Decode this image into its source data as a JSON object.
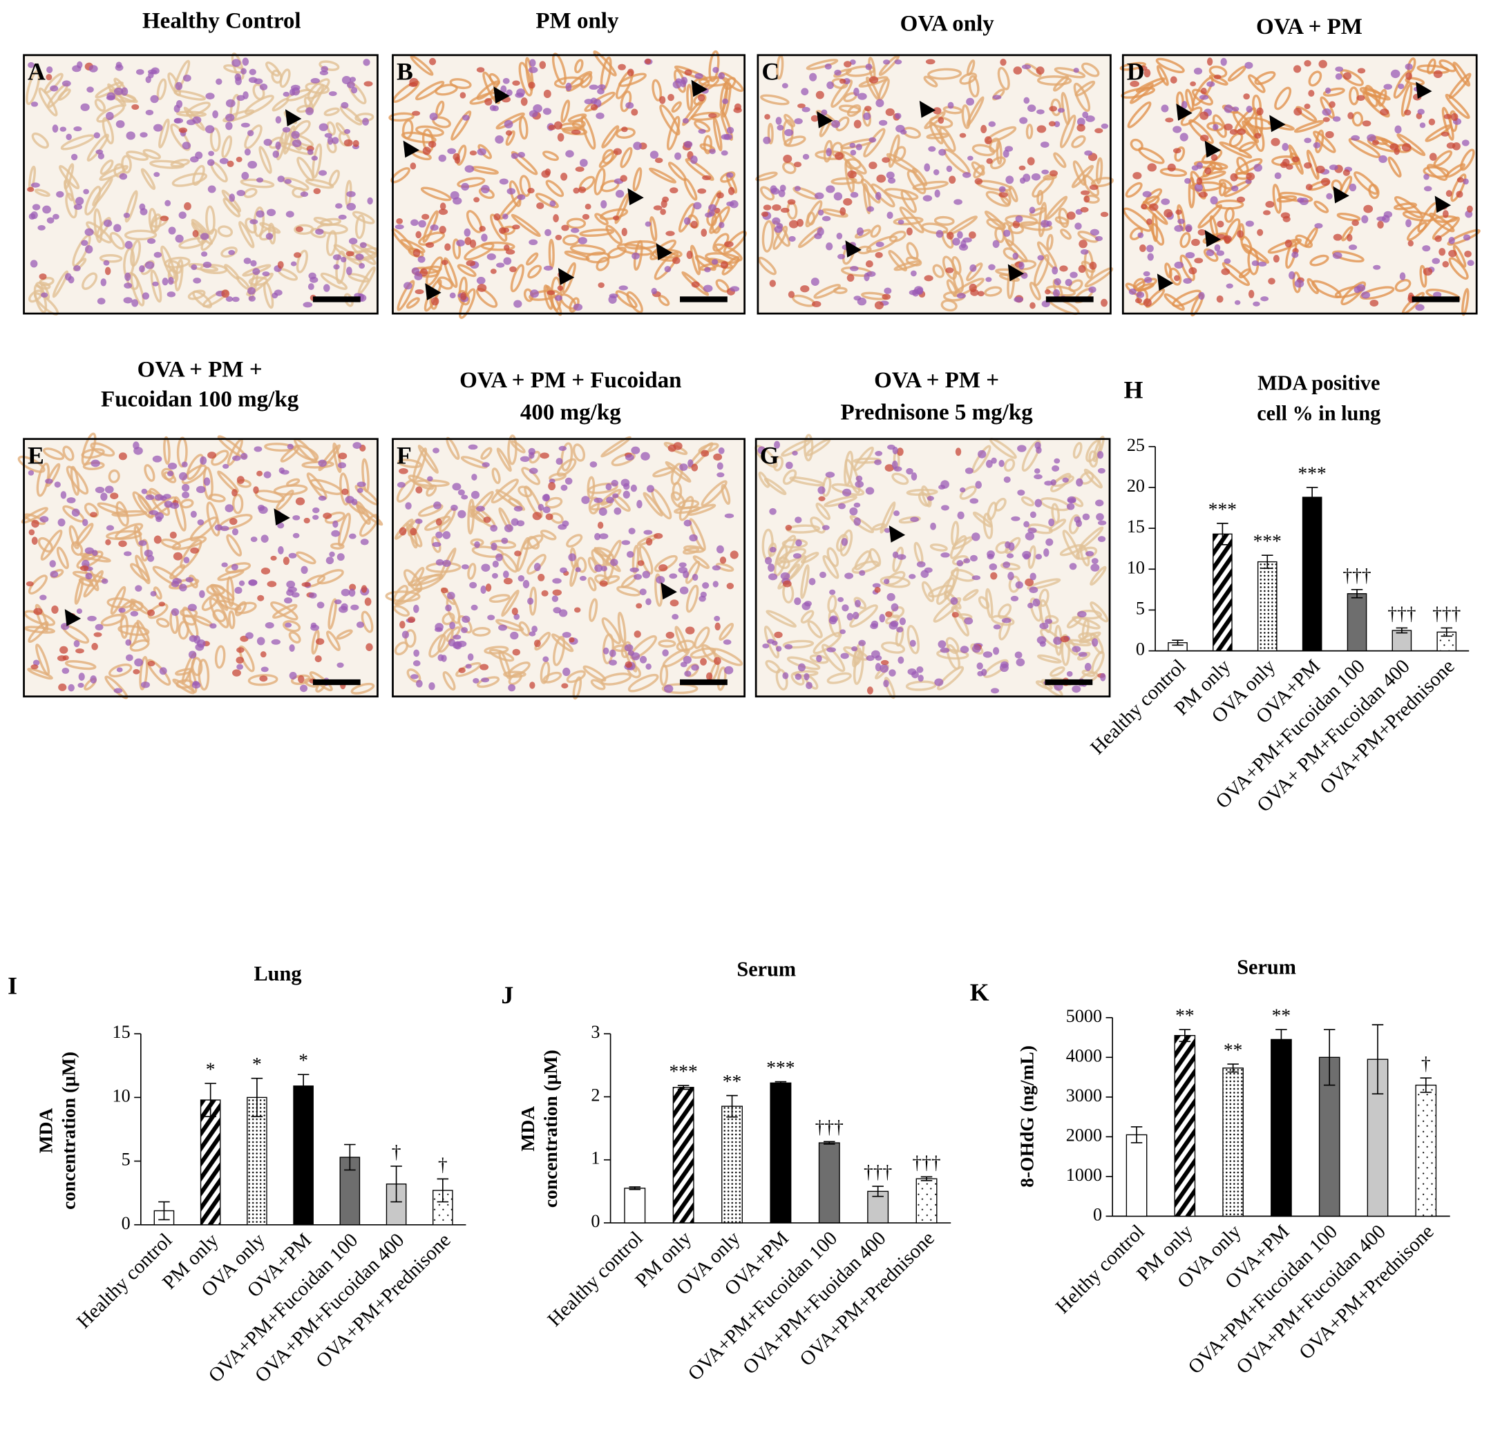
{
  "panels": [
    {
      "letter": "A",
      "title": [
        "Healthy Control"
      ]
    },
    {
      "letter": "B",
      "title": [
        "PM only"
      ]
    },
    {
      "letter": "C",
      "title": [
        "OVA only"
      ]
    },
    {
      "letter": "D",
      "title": [
        "OVA + PM"
      ]
    },
    {
      "letter": "E",
      "title": [
        "OVA + PM +",
        "Fucoidan 100 mg/kg"
      ]
    },
    {
      "letter": "F",
      "title": [
        "OVA + PM +  Fucoidan",
        "400 mg/kg"
      ]
    },
    {
      "letter": "G",
      "title": [
        "OVA + PM +",
        "Prednisone 5 mg/kg"
      ]
    }
  ],
  "chart_data": [
    {
      "type": "bar",
      "letter": "H",
      "title": [
        "MDA positive",
        "cell % in lung"
      ],
      "categories": [
        "Healthy control",
        "PM only",
        "OVA only",
        "OVA+PM",
        "OVA+PM+Fucoidan 100",
        "OVA+ PM+Fucoidan 400",
        "OVA+PM+Prednisone"
      ],
      "values": [
        1.0,
        14.3,
        10.9,
        18.8,
        7.0,
        2.5,
        2.3
      ],
      "errors": [
        0.3,
        1.3,
        0.8,
        1.2,
        0.5,
        0.3,
        0.5
      ],
      "annotations": [
        null,
        "***",
        "***",
        "***",
        "†††",
        "†††",
        "†††"
      ],
      "bar_fills": [
        "#ffffff",
        "hatch",
        "dots",
        "#000000",
        "#6e6e6e",
        "#c8c8c8",
        "sparse"
      ],
      "ylim": [
        0,
        25
      ],
      "yticks": [
        0,
        5,
        10,
        15,
        20,
        25
      ]
    },
    {
      "type": "bar",
      "letter": "I",
      "title": [
        "Lung"
      ],
      "ylabel": [
        "MDA",
        "concentration (μM)"
      ],
      "categories": [
        "Healthy control",
        "PM only",
        "OVA only",
        "OVA+PM",
        "OVA+PM+Fucoidan 100",
        "OVA+PM+Fucoidan 400",
        "OVA+PM+Prednisone"
      ],
      "values": [
        1.1,
        9.8,
        10.0,
        10.9,
        5.3,
        3.2,
        2.7
      ],
      "errors": [
        0.7,
        1.3,
        1.5,
        0.9,
        1.0,
        1.4,
        0.9
      ],
      "annotations": [
        null,
        "*",
        "*",
        "*",
        null,
        "†",
        "†"
      ],
      "bar_fills": [
        "#ffffff",
        "hatch",
        "dots",
        "#000000",
        "#6e6e6e",
        "#c8c8c8",
        "sparse"
      ],
      "ylim": [
        0,
        15
      ],
      "yticks": [
        0,
        5,
        10,
        15
      ]
    },
    {
      "type": "bar",
      "letter": "J",
      "title": [
        "Serum"
      ],
      "ylabel": [
        "MDA",
        "concentration (μM)"
      ],
      "categories": [
        "Healthy control",
        "PM only",
        "OVA only",
        "OVA+PM",
        "OVA+PM+Fucoidan 100",
        "OVA+PM+Fuoidan 400",
        "OVA+PM+Prednisone"
      ],
      "values": [
        0.55,
        2.15,
        1.85,
        2.22,
        1.27,
        0.5,
        0.7
      ],
      "errors": [
        0.02,
        0.03,
        0.17,
        0.02,
        0.02,
        0.08,
        0.03
      ],
      "annotations": [
        null,
        "***",
        "**",
        "***",
        "†††",
        "†††",
        "†††"
      ],
      "bar_fills": [
        "#ffffff",
        "hatch",
        "dots",
        "#000000",
        "#6e6e6e",
        "#c8c8c8",
        "sparse"
      ],
      "ylim": [
        0,
        3
      ],
      "yticks": [
        0,
        1,
        2,
        3
      ]
    },
    {
      "type": "bar",
      "letter": "K",
      "title": [
        "Serum"
      ],
      "ylabel": [
        "8-OHdG (ng/mL)"
      ],
      "categories": [
        "Helthy control",
        "PM only",
        "OVA only",
        "OVA+PM",
        "OVA+PM+Fucoidan 100",
        "OVA+PM+Fucoidan 400",
        "OVA+PM+Prednisone"
      ],
      "values": [
        2050,
        4550,
        3730,
        4450,
        4000,
        3950,
        3300
      ],
      "errors": [
        200,
        150,
        100,
        250,
        700,
        870,
        180
      ],
      "annotations": [
        null,
        "**",
        "**",
        "**",
        null,
        null,
        "†"
      ],
      "bar_fills": [
        "#ffffff",
        "hatch",
        "dots",
        "#000000",
        "#6e6e6e",
        "#c8c8c8",
        "sparse"
      ],
      "ylim": [
        0,
        5000
      ],
      "yticks": [
        0,
        1000,
        2000,
        3000,
        4000,
        5000
      ]
    }
  ]
}
